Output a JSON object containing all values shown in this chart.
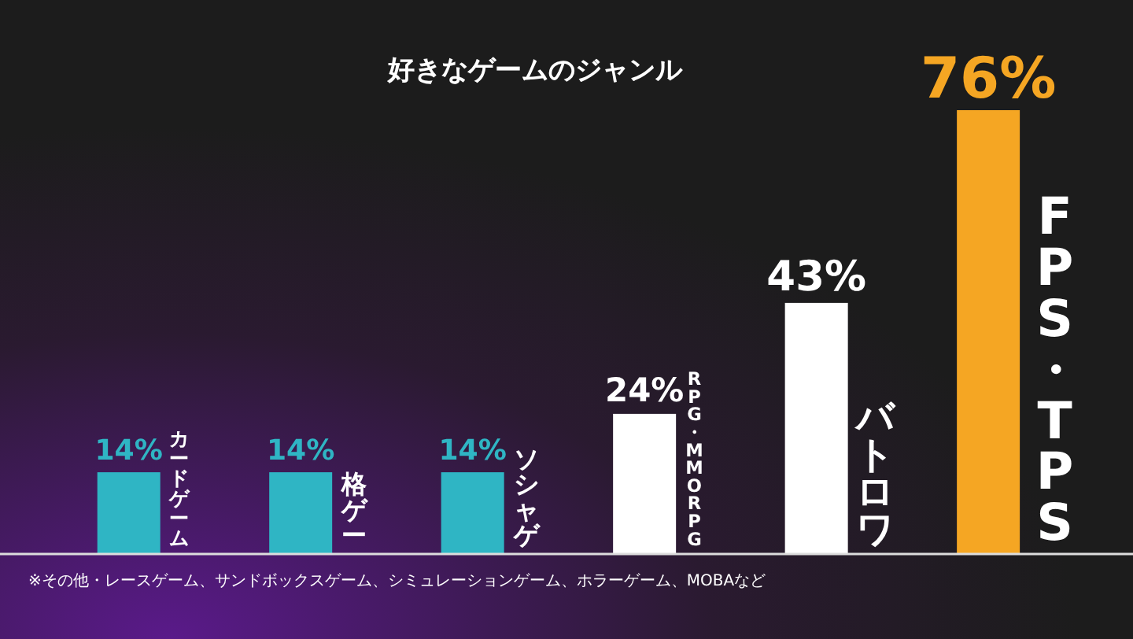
{
  "chart_data": {
    "type": "bar",
    "title": "好きなゲームのジャンル",
    "categories": [
      "カードゲーム",
      "格ゲー",
      "ソシャゲ",
      "RPG・MMORPG",
      "バトロワ",
      "FPS・TPS"
    ],
    "values": [
      14,
      14,
      14,
      24,
      43,
      76
    ],
    "colors": [
      "#2fb5c4",
      "#2fb5c4",
      "#2fb5c4",
      "#ffffff",
      "#ffffff",
      "#f5a623"
    ],
    "value_labels": [
      "14%",
      "14%",
      "14%",
      "24%",
      "43%",
      "76%"
    ],
    "annotations": [
      "※その他・レースゲーム、サンドボックスゲーム、シミュレーションゲーム、ホラーゲーム、MOBAなど"
    ]
  }
}
